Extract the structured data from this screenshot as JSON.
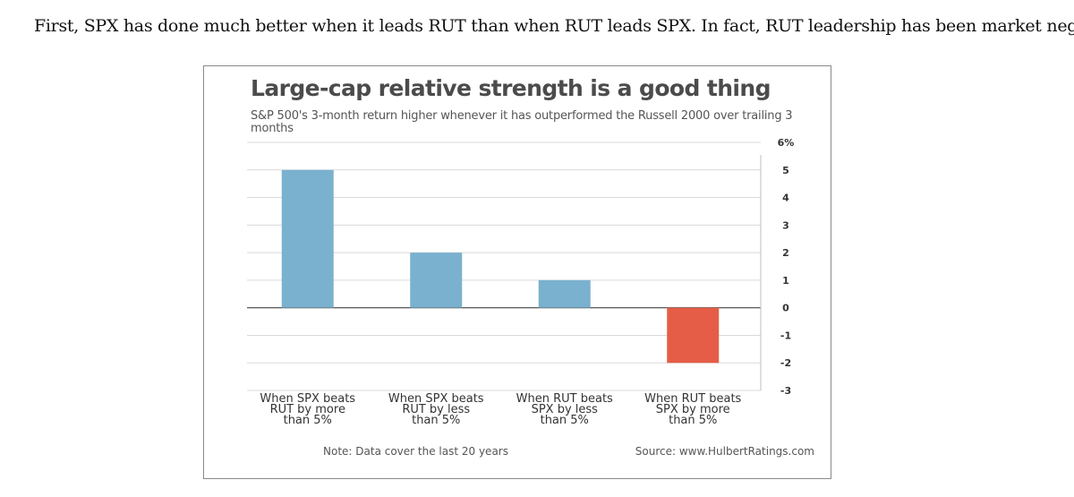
{
  "article": {
    "intro_text": "First, SPX has done much better when it leads RUT than when RUT leads SPX. In fact, RUT leadership has been market negative."
  },
  "chart_data": {
    "type": "bar",
    "title": "Large-cap relative strength is a good thing",
    "subtitle": "S&P 500's 3-month return higher whenever it has outperformed the Russell 2000 over trailing 3 months",
    "categories": [
      [
        "When SPX beats",
        "RUT by more",
        "than 5%"
      ],
      [
        "When SPX beats",
        "RUT by less",
        "than 5%"
      ],
      [
        "When RUT beats",
        "SPX by less",
        "than 5%"
      ],
      [
        "When RUT beats",
        "SPX by more",
        "than 5%"
      ]
    ],
    "values": [
      5,
      2,
      1,
      -2
    ],
    "ylim": [
      -3,
      6
    ],
    "yticks": [
      -3,
      -2,
      -1,
      0,
      1,
      2,
      3,
      4,
      5,
      6
    ],
    "ytick_labels": [
      "-3",
      "-2",
      "-1",
      "0",
      "1",
      "2",
      "3",
      "4",
      "5",
      "6%"
    ],
    "y_axis_side": "right",
    "grid": true,
    "colors": {
      "positive": "#7ab1cf",
      "negative": "#e55d47",
      "grid": "#d9d9d9",
      "axis": "#444444"
    },
    "note": "Note: Data cover the last 20 years",
    "source": "Source: www.HulbertRatings.com"
  }
}
